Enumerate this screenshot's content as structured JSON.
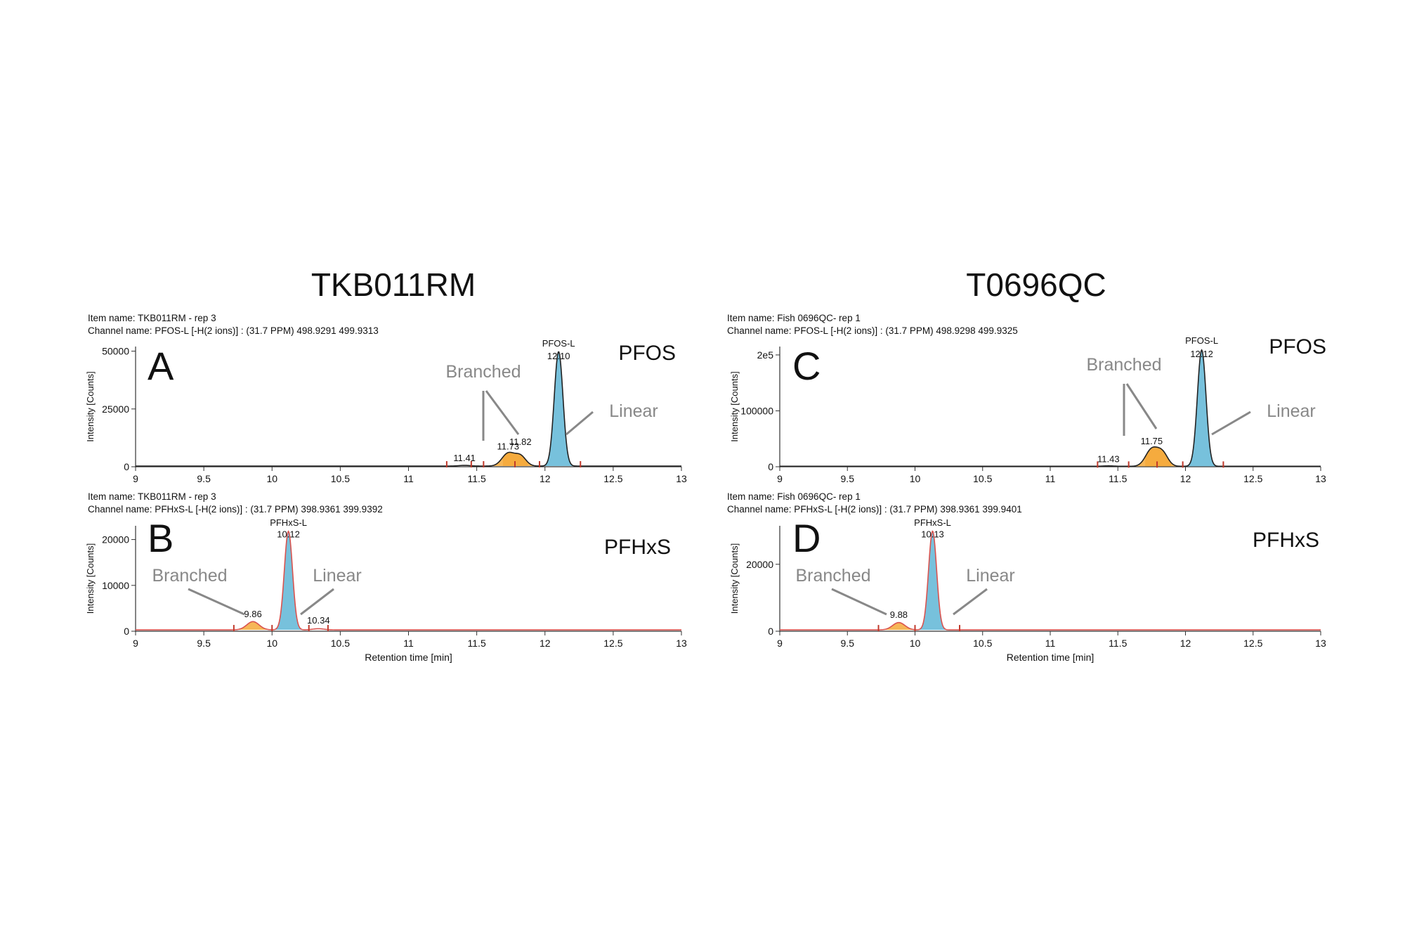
{
  "figure": {
    "columns": [
      {
        "title": "TKB011RM"
      },
      {
        "title": "T0696QC"
      }
    ]
  },
  "chart_data": [
    {
      "type": "line",
      "panel_letter": "A",
      "compound": "PFOS",
      "item_name": "Item name: TKB011RM - rep 3",
      "channel_name": "Channel name: PFOS-L [-H(2 ions)] : (31.7 PPM) 498.9291 499.9313",
      "xlabel": "",
      "ylabel": "Intensity [Counts]",
      "xlim": [
        9,
        13
      ],
      "ylim": [
        0,
        52000
      ],
      "xticks": [
        "9",
        "9.5",
        "10",
        "10.5",
        "11",
        "11.5",
        "12",
        "12.5",
        "13"
      ],
      "yticks": [
        {
          "value": 0,
          "label": "0"
        },
        {
          "value": 25000,
          "label": "25000"
        },
        {
          "value": 50000,
          "label": "50000"
        }
      ],
      "baseline": 300,
      "trace_color": "#222222",
      "peaks": [
        {
          "rt": 11.41,
          "height": 300,
          "width": 0.04,
          "kind": "minor"
        },
        {
          "rt": 11.73,
          "height": 5500,
          "width": 0.045,
          "kind": "branched"
        },
        {
          "rt": 11.82,
          "height": 4300,
          "width": 0.04,
          "kind": "branched"
        },
        {
          "rt": 12.1,
          "height": 49500,
          "width": 0.032,
          "kind": "linear"
        }
      ],
      "integration_markers": [
        11.28,
        11.46,
        11.55,
        11.78,
        11.96,
        12.26
      ],
      "peak_labels": [
        {
          "text": "11.41",
          "rt": 11.41,
          "y": 2500
        },
        {
          "text": "11.73",
          "rt": 11.73,
          "y": 7500
        },
        {
          "text": "11.82",
          "rt": 11.82,
          "y": 9500
        },
        {
          "text": "PFOS-L",
          "rt": 12.1,
          "y": 52000
        },
        {
          "text": "12.10",
          "rt": 12.1,
          "y": 46500
        }
      ],
      "annotations": {
        "branched": "Branched",
        "linear": "Linear"
      }
    },
    {
      "type": "line",
      "panel_letter": "B",
      "compound": "PFHxS",
      "item_name": "Item name: TKB011RM - rep 3",
      "channel_name": "Channel name: PFHxS-L [-H(2 ions)] : (31.7 PPM) 398.9361 399.9392",
      "xlabel": "Retention time [min]",
      "ylabel": "Intensity [Counts]",
      "xlim": [
        9,
        13
      ],
      "ylim": [
        0,
        23000
      ],
      "xticks": [
        "9",
        "9.5",
        "10",
        "10.5",
        "11",
        "11.5",
        "12",
        "12.5",
        "13"
      ],
      "yticks": [
        {
          "value": 0,
          "label": "0"
        },
        {
          "value": 10000,
          "label": "10000"
        },
        {
          "value": 20000,
          "label": "20000"
        }
      ],
      "baseline": 300,
      "trace_color": "#d9534f",
      "peaks": [
        {
          "rt": 9.86,
          "height": 1800,
          "width": 0.045,
          "kind": "branched"
        },
        {
          "rt": 10.12,
          "height": 21500,
          "width": 0.03,
          "kind": "linear"
        },
        {
          "rt": 10.34,
          "height": 250,
          "width": 0.04,
          "kind": "minor"
        }
      ],
      "integration_markers": [
        9.72,
        10.0,
        10.27,
        10.41
      ],
      "peak_labels": [
        {
          "text": "9.86",
          "rt": 9.86,
          "y": 3100
        },
        {
          "text": "10.34",
          "rt": 10.34,
          "y": 1700
        },
        {
          "text": "PFHxS-L",
          "rt": 10.12,
          "y": 23000
        },
        {
          "text": "10.12",
          "rt": 10.12,
          "y": 20500
        }
      ],
      "annotations": {
        "branched": "Branched",
        "linear": "Linear"
      }
    },
    {
      "type": "line",
      "panel_letter": "C",
      "compound": "PFOS",
      "item_name": "Item name: Fish 0696QC- rep 1",
      "channel_name": "Channel name: PFOS-L [-H(2 ions)] : (31.7 PPM) 498.9298 499.9325",
      "xlabel": "",
      "ylabel": "Intensity [Counts]",
      "xlim": [
        9,
        13
      ],
      "ylim": [
        0,
        215000
      ],
      "xticks": [
        "9",
        "9.5",
        "10",
        "10.5",
        "11",
        "11.5",
        "12",
        "12.5",
        "13"
      ],
      "yticks": [
        {
          "value": 0,
          "label": "0"
        },
        {
          "value": 100000,
          "label": "100000"
        },
        {
          "value": 200000,
          "label": "2e5"
        }
      ],
      "baseline": 800,
      "trace_color": "#222222",
      "peaks": [
        {
          "rt": 11.43,
          "height": 800,
          "width": 0.04,
          "kind": "minor"
        },
        {
          "rt": 11.75,
          "height": 30000,
          "width": 0.045,
          "kind": "branched"
        },
        {
          "rt": 11.83,
          "height": 23000,
          "width": 0.04,
          "kind": "branched"
        },
        {
          "rt": 12.12,
          "height": 208000,
          "width": 0.032,
          "kind": "linear"
        }
      ],
      "integration_markers": [
        11.35,
        11.58,
        11.79,
        11.98,
        12.28
      ],
      "peak_labels": [
        {
          "text": "11.43",
          "rt": 11.43,
          "y": 8000
        },
        {
          "text": "11.75",
          "rt": 11.75,
          "y": 40000
        },
        {
          "text": "PFOS-L",
          "rt": 12.12,
          "y": 220000
        },
        {
          "text": "12.12",
          "rt": 12.12,
          "y": 196000
        }
      ],
      "annotations": {
        "branched": "Branched",
        "linear": "Linear"
      }
    },
    {
      "type": "line",
      "panel_letter": "D",
      "compound": "PFHxS",
      "item_name": "Item name: Fish 0696QC- rep 1",
      "channel_name": "Channel name: PFHxS-L [-H(2 ions)] : (31.7 PPM) 398.9361 399.9401",
      "xlabel": "Retention time [min]",
      "ylabel": "Intensity [Counts]",
      "xlim": [
        9,
        13
      ],
      "ylim": [
        0,
        31500
      ],
      "xticks": [
        "9",
        "9.5",
        "10",
        "10.5",
        "11",
        "11.5",
        "12",
        "12.5",
        "13"
      ],
      "yticks": [
        {
          "value": 0,
          "label": "0"
        },
        {
          "value": 20000,
          "label": "20000"
        }
      ],
      "baseline": 400,
      "trace_color": "#d9534f",
      "peaks": [
        {
          "rt": 9.88,
          "height": 2200,
          "width": 0.045,
          "kind": "branched"
        },
        {
          "rt": 10.13,
          "height": 29500,
          "width": 0.03,
          "kind": "linear"
        }
      ],
      "integration_markers": [
        9.73,
        10.0,
        10.33
      ],
      "peak_labels": [
        {
          "text": "9.88",
          "rt": 9.88,
          "y": 4000
        },
        {
          "text": "PFHxS-L",
          "rt": 10.13,
          "y": 31500
        },
        {
          "text": "10.13",
          "rt": 10.13,
          "y": 28000
        }
      ],
      "annotations": {
        "branched": "Branched",
        "linear": "Linear"
      }
    }
  ]
}
